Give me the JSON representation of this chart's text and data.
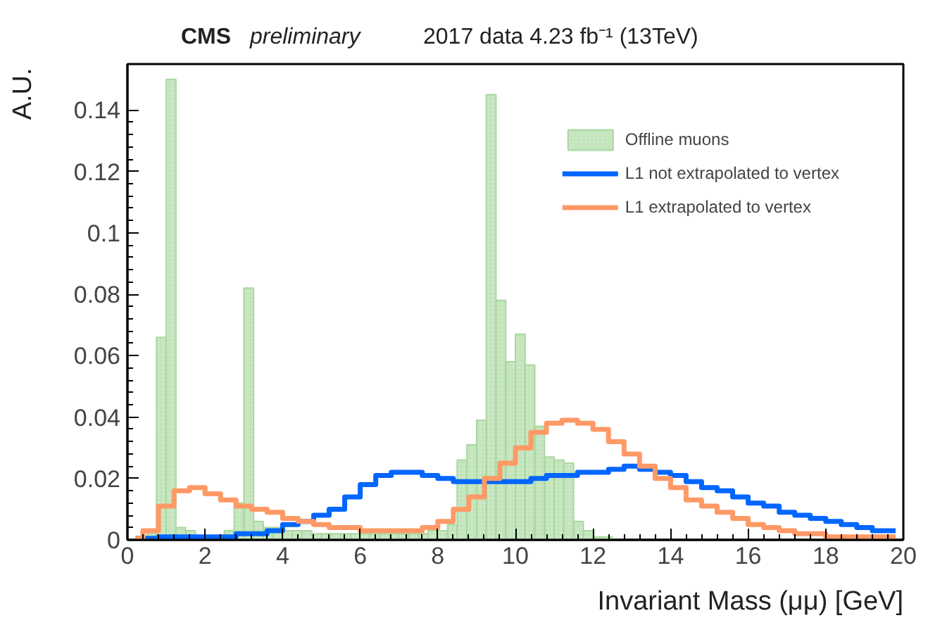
{
  "chart_data": {
    "type": "histogram",
    "title": "CMS preliminary",
    "subtitle": "2017 data 4.23 fb⁻¹ (13TeV)",
    "xlabel": "Invariant Mass (μμ) [GeV]",
    "ylabel": "A.U.",
    "xlim": [
      0,
      20
    ],
    "ylim": [
      0,
      0.155
    ],
    "xticks": [
      0,
      2,
      4,
      6,
      8,
      10,
      12,
      14,
      16,
      18,
      20
    ],
    "yticks": [
      0,
      0.02,
      0.04,
      0.06,
      0.08,
      0.1,
      0.12,
      0.14
    ],
    "legend": "top right",
    "grid": false,
    "series": [
      {
        "name": "Offline muons",
        "color": "#a9d8a0",
        "bins": [
          0,
          0.25,
          0.5,
          0.75,
          1,
          1.25,
          1.5,
          1.75,
          2,
          2.25,
          2.5,
          2.75,
          3,
          3.25,
          3.5,
          3.75,
          4,
          4.25,
          4.5,
          4.75,
          5,
          5.25,
          5.5,
          5.75,
          6,
          6.25,
          6.5,
          6.75,
          7,
          7.25,
          7.5,
          7.75,
          8,
          8.25,
          8.5,
          8.75,
          9,
          9.25,
          9.5,
          9.75,
          10,
          10.25,
          10.5,
          10.75,
          11,
          11.25,
          11.5,
          11.75,
          12,
          12.25,
          12.5,
          12.75,
          13,
          13.25,
          13.5,
          13.75,
          14,
          14.25,
          14.5,
          14.75,
          15,
          15.25,
          15.5,
          15.75,
          16,
          16.25,
          16.5,
          16.75,
          17,
          17.25,
          17.5,
          17.75,
          18,
          18.25,
          18.5,
          18.75,
          19,
          19.25,
          19.5,
          19.75,
          20
        ],
        "values": [
          null,
          null,
          0.002,
          0.066,
          0.15,
          0.004,
          0.003,
          null,
          null,
          null,
          0.003,
          0.012,
          0.082,
          0.006,
          0.004,
          0.004,
          0.003,
          0.003,
          0.003,
          0.002,
          0.002,
          0.002,
          0.002,
          0.002,
          0.002,
          0.002,
          0.002,
          0.002,
          0.002,
          0.002,
          0.002,
          0.003,
          0.003,
          0.005,
          0.026,
          0.031,
          0.039,
          0.145,
          0.078,
          0.058,
          0.067,
          0.057,
          0.037,
          0.027,
          0.026,
          0.025,
          0.006,
          0.003,
          0.001,
          0.001,
          0,
          0,
          0,
          0,
          0,
          0,
          0,
          0,
          0,
          0,
          0,
          0,
          0,
          0,
          0,
          0,
          0,
          0,
          0,
          0,
          0,
          0,
          0,
          0,
          0,
          0,
          0,
          0,
          0,
          0
        ]
      },
      {
        "name": "L1 not extrapolated to vertex",
        "type": "step",
        "color": "#0066ff",
        "x": [
          0.2,
          0.6,
          1,
          1.4,
          1.8,
          2.2,
          2.6,
          3,
          3.4,
          3.8,
          4.2,
          4.6,
          5,
          5.4,
          5.8,
          6.2,
          6.6,
          7,
          7.4,
          7.8,
          8.2,
          8.6,
          9,
          9.4,
          9.8,
          10.2,
          10.6,
          11,
          11.4,
          11.8,
          12.2,
          12.6,
          13,
          13.4,
          13.8,
          14.2,
          14.6,
          15,
          15.4,
          15.8,
          16.2,
          16.6,
          17,
          17.4,
          17.8,
          18.2,
          18.6,
          19,
          19.4,
          19.8
        ],
        "values": [
          0.0005,
          0.0005,
          0.001,
          0.001,
          0.001,
          0.001,
          0.001,
          0.002,
          0.002,
          0.003,
          0.005,
          0.006,
          0.008,
          0.01,
          0.014,
          0.018,
          0.021,
          0.022,
          0.022,
          0.021,
          0.02,
          0.019,
          0.019,
          0.019,
          0.019,
          0.019,
          0.02,
          0.021,
          0.021,
          0.022,
          0.022,
          0.023,
          0.024,
          0.023,
          0.022,
          0.021,
          0.019,
          0.017,
          0.016,
          0.014,
          0.012,
          0.011,
          0.009,
          0.008,
          0.007,
          0.006,
          0.005,
          0.004,
          0.003,
          0.003
        ]
      },
      {
        "name": "L1 extrapolated to vertex",
        "type": "step",
        "color": "#ff9966",
        "x": [
          0.2,
          0.6,
          1,
          1.4,
          1.8,
          2.2,
          2.6,
          3,
          3.4,
          3.8,
          4.2,
          4.6,
          5,
          5.4,
          5.8,
          6.2,
          6.6,
          7,
          7.4,
          7.8,
          8.2,
          8.6,
          9,
          9.4,
          9.8,
          10.2,
          10.6,
          11,
          11.4,
          11.8,
          12.2,
          12.6,
          13,
          13.4,
          13.8,
          14.2,
          14.6,
          15,
          15.4,
          15.8,
          16.2,
          16.6,
          17,
          17.4,
          17.8,
          18.2,
          18.6,
          19,
          19.4,
          19.8
        ],
        "values": [
          0.0005,
          0.003,
          0.011,
          0.016,
          0.017,
          0.015,
          0.013,
          0.011,
          0.01,
          0.009,
          0.007,
          0.006,
          0.005,
          0.004,
          0.004,
          0.003,
          0.003,
          0.003,
          0.003,
          0.004,
          0.006,
          0.01,
          0.014,
          0.02,
          0.025,
          0.03,
          0.035,
          0.038,
          0.039,
          0.038,
          0.036,
          0.032,
          0.028,
          0.024,
          0.02,
          0.017,
          0.013,
          0.011,
          0.009,
          0.007,
          0.005,
          0.004,
          0.003,
          0.002,
          0.002,
          0.001,
          0.001,
          0.001,
          0.001,
          0.001
        ]
      }
    ]
  }
}
